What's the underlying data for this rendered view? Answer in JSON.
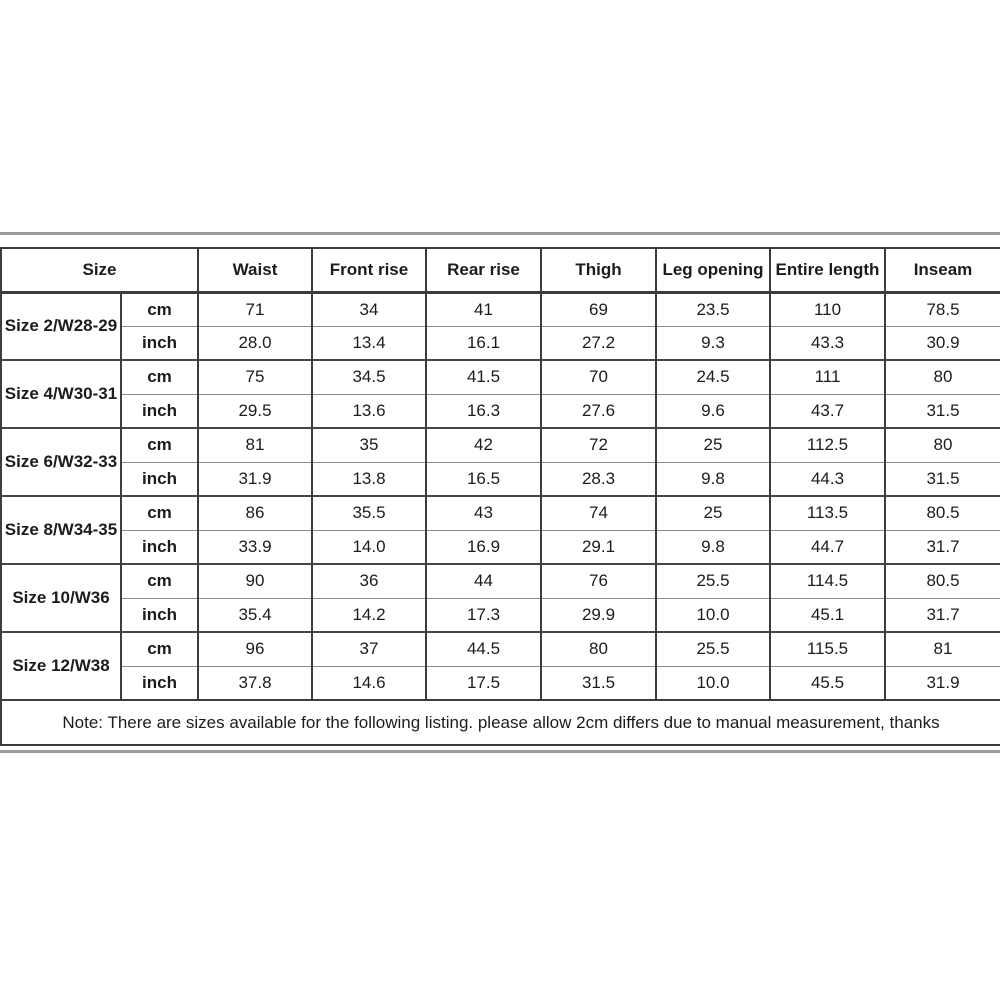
{
  "divider": {
    "top": "",
    "bottom": ""
  },
  "size_chart": {
    "headers": [
      "Size",
      "Waist",
      "Front rise",
      "Rear rise",
      "Thigh",
      "Leg opening",
      "Entire length",
      "Inseam"
    ],
    "unit_cm_label": "cm",
    "unit_inch_label": "inch",
    "rows": [
      {
        "size": "Size 2/W28-29",
        "cm": [
          "71",
          "34",
          "41",
          "69",
          "23.5",
          "110",
          "78.5"
        ],
        "inch": [
          "28.0",
          "13.4",
          "16.1",
          "27.2",
          "9.3",
          "43.3",
          "30.9"
        ]
      },
      {
        "size": "Size 4/W30-31",
        "cm": [
          "75",
          "34.5",
          "41.5",
          "70",
          "24.5",
          "111",
          "80"
        ],
        "inch": [
          "29.5",
          "13.6",
          "16.3",
          "27.6",
          "9.6",
          "43.7",
          "31.5"
        ]
      },
      {
        "size": "Size 6/W32-33",
        "cm": [
          "81",
          "35",
          "42",
          "72",
          "25",
          "112.5",
          "80"
        ],
        "inch": [
          "31.9",
          "13.8",
          "16.5",
          "28.3",
          "9.8",
          "44.3",
          "31.5"
        ]
      },
      {
        "size": "Size 8/W34-35",
        "cm": [
          "86",
          "35.5",
          "43",
          "74",
          "25",
          "113.5",
          "80.5"
        ],
        "inch": [
          "33.9",
          "14.0",
          "16.9",
          "29.1",
          "9.8",
          "44.7",
          "31.7"
        ]
      },
      {
        "size": "Size 10/W36",
        "cm": [
          "90",
          "36",
          "44",
          "76",
          "25.5",
          "114.5",
          "80.5"
        ],
        "inch": [
          "35.4",
          "14.2",
          "17.3",
          "29.9",
          "10.0",
          "45.1",
          "31.7"
        ]
      },
      {
        "size": "Size 12/W38",
        "cm": [
          "96",
          "37",
          "44.5",
          "80",
          "25.5",
          "115.5",
          "81"
        ],
        "inch": [
          "37.8",
          "14.6",
          "17.5",
          "31.5",
          "10.0",
          "45.5",
          "31.9"
        ]
      }
    ],
    "note": "Note: There are sizes available for the following listing. please allow 2cm differs due to manual measurement, thanks"
  },
  "colors": {
    "border_dark": "#3d3d3d",
    "border_light": "#8c8c8c",
    "divider_gray": "#9c9c9c",
    "text": "#1c1c1c",
    "background": "#ffffff"
  }
}
